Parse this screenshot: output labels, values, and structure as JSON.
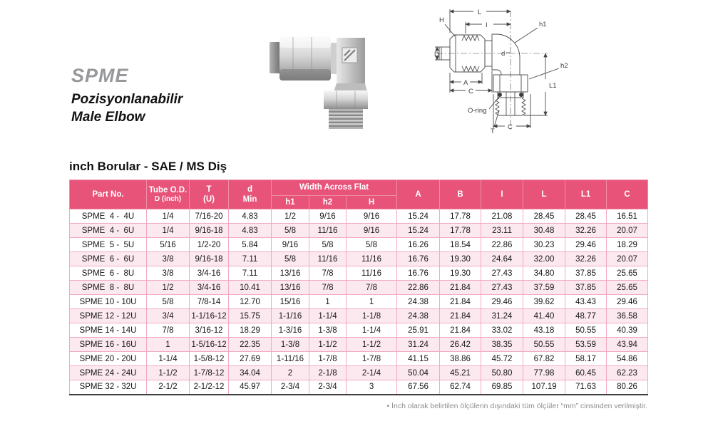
{
  "title": {
    "brand": "SPME",
    "subtitle_line1": "Pozisyonlanabilir",
    "subtitle_line2": "Male Elbow"
  },
  "section_heading": "inch Borular - SAE / MS Diş",
  "diagram": {
    "labels": {
      "L": "L",
      "I": "I",
      "H": "H",
      "h1": "h1",
      "D": "D",
      "d": "d",
      "h2": "h2",
      "L1": "L1",
      "A": "A",
      "C_left": "C",
      "o_ring": "O-ring",
      "T": "T",
      "C_bottom": "C"
    }
  },
  "table": {
    "header": {
      "part_no": "Part No.",
      "tube_od_line1": "Tube O.D.",
      "tube_od_line2": "D (inch)",
      "t_line1": "T",
      "t_line2": "(U)",
      "d_line1": "d",
      "d_line2": "Min",
      "waf": "Width Across Flat",
      "h1": "h1",
      "h2": "h2",
      "H": "H",
      "cols": [
        "A",
        "B",
        "I",
        "L",
        "L1",
        "C"
      ]
    },
    "rows": [
      [
        "SPME  4 -  4U",
        "1/4",
        "7/16-20",
        "4.83",
        "1/2",
        "9/16",
        "9/16",
        "15.24",
        "17.78",
        "21.08",
        "28.45",
        "28.45",
        "16.51"
      ],
      [
        "SPME  4 -  6U",
        "1/4",
        "9/16-18",
        "4.83",
        "5/8",
        "11/16",
        "9/16",
        "15.24",
        "17.78",
        "23.11",
        "30.48",
        "32.26",
        "20.07"
      ],
      [
        "SPME  5 -  5U",
        "5/16",
        "1/2-20",
        "5.84",
        "9/16",
        "5/8",
        "5/8",
        "16.26",
        "18.54",
        "22.86",
        "30.23",
        "29.46",
        "18.29"
      ],
      [
        "SPME  6 -  6U",
        "3/8",
        "9/16-18",
        "7.11",
        "5/8",
        "11/16",
        "11/16",
        "16.76",
        "19.30",
        "24.64",
        "32.00",
        "32.26",
        "20.07"
      ],
      [
        "SPME  6 -  8U",
        "3/8",
        "3/4-16",
        "7.11",
        "13/16",
        "7/8",
        "11/16",
        "16.76",
        "19.30",
        "27.43",
        "34.80",
        "37.85",
        "25.65"
      ],
      [
        "SPME  8 -  8U",
        "1/2",
        "3/4-16",
        "10.41",
        "13/16",
        "7/8",
        "7/8",
        "22.86",
        "21.84",
        "27.43",
        "37.59",
        "37.85",
        "25.65"
      ],
      [
        "SPME 10 - 10U",
        "5/8",
        "7/8-14",
        "12.70",
        "15/16",
        "1",
        "1",
        "24.38",
        "21.84",
        "29.46",
        "39.62",
        "43.43",
        "29.46"
      ],
      [
        "SPME 12 - 12U",
        "3/4",
        "1-1/16-12",
        "15.75",
        "1-1/16",
        "1-1/4",
        "1-1/8",
        "24.38",
        "21.84",
        "31.24",
        "41.40",
        "48.77",
        "36.58"
      ],
      [
        "SPME 14 - 14U",
        "7/8",
        "3/16-12",
        "18.29",
        "1-3/16",
        "1-3/8",
        "1-1/4",
        "25.91",
        "21.84",
        "33.02",
        "43.18",
        "50.55",
        "40.39"
      ],
      [
        "SPME 16 - 16U",
        "1",
        "1-5/16-12",
        "22.35",
        "1-3/8",
        "1-1/2",
        "1-1/2",
        "31.24",
        "26.42",
        "38.35",
        "50.55",
        "53.59",
        "43.94"
      ],
      [
        "SPME 20 - 20U",
        "1-1/4",
        "1-5/8-12",
        "27.69",
        "1-11/16",
        "1-7/8",
        "1-7/8",
        "41.15",
        "38.86",
        "45.72",
        "67.82",
        "58.17",
        "54.86"
      ],
      [
        "SPME 24 - 24U",
        "1-1/2",
        "1-7/8-12",
        "34.04",
        "2",
        "2-1/8",
        "2-1/4",
        "50.04",
        "45.21",
        "50.80",
        "77.98",
        "60.45",
        "62.23"
      ],
      [
        "SPME 32 - 32U",
        "2-1/2",
        "2-1/2-12",
        "45.97",
        "2-3/4",
        "2-3/4",
        "3",
        "67.56",
        "62.74",
        "69.85",
        "107.19",
        "71.63",
        "80.26"
      ]
    ]
  },
  "footnote": "• İnch olarak belirtilen ölçülerin dışındaki tüm ölçüler “mm” cinsinden verilmiştir.",
  "colors": {
    "header_bg": "#e8537a",
    "row_alt_bg": "#fce9ef",
    "grid": "#f3aabe",
    "bottom_border": "#3f3f3f",
    "brand_gray": "#97989b"
  }
}
